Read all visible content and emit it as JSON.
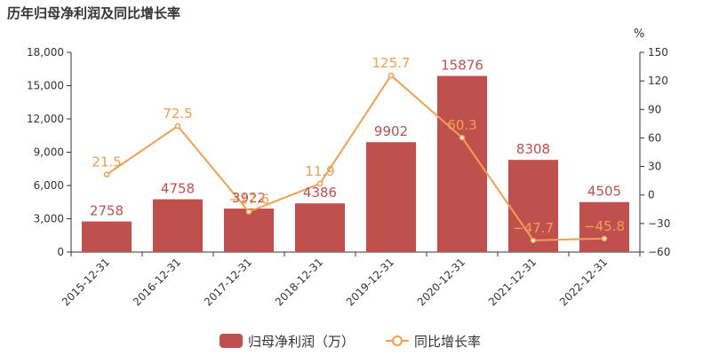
{
  "chart_data": {
    "type": "bar",
    "title": "历年归母净利润及同比增长率",
    "categories": [
      "2015-12-31",
      "2016-12-31",
      "2017-12-31",
      "2018-12-31",
      "2019-12-31",
      "2020-12-31",
      "2021-12-31",
      "2022-12-31"
    ],
    "series": [
      {
        "name": "归母净利润（万）",
        "type": "bar",
        "axis": "left",
        "color": "#c0504d",
        "values": [
          2758,
          4758,
          3922,
          4386,
          9902,
          15876,
          8308,
          4505
        ]
      },
      {
        "name": "同比增长率",
        "type": "line",
        "axis": "right",
        "color": "#f0a050",
        "values": [
          21.5,
          72.5,
          -17.6,
          11.9,
          125.7,
          60.3,
          -47.7,
          -45.8
        ]
      }
    ],
    "y_left": {
      "min": 0,
      "max": 18000,
      "ticks": [
        "0",
        "3,000",
        "6,000",
        "9,000",
        "12,000",
        "15,000",
        "18,000"
      ]
    },
    "y_right": {
      "min": -60,
      "max": 150,
      "unit": "%",
      "ticks": [
        "−60",
        "−30",
        "0",
        "30",
        "60",
        "90",
        "120",
        "150"
      ]
    },
    "bar_labels": [
      "2758",
      "4758",
      "3922",
      "4386",
      "9902",
      "15876",
      "8308",
      "4505"
    ],
    "line_labels": [
      "21.5",
      "72.5",
      "−17.6",
      "11.9",
      "125.7",
      "60.3",
      "−47.7",
      "−45.8"
    ],
    "legend_position": "bottom-center",
    "grid": false
  }
}
